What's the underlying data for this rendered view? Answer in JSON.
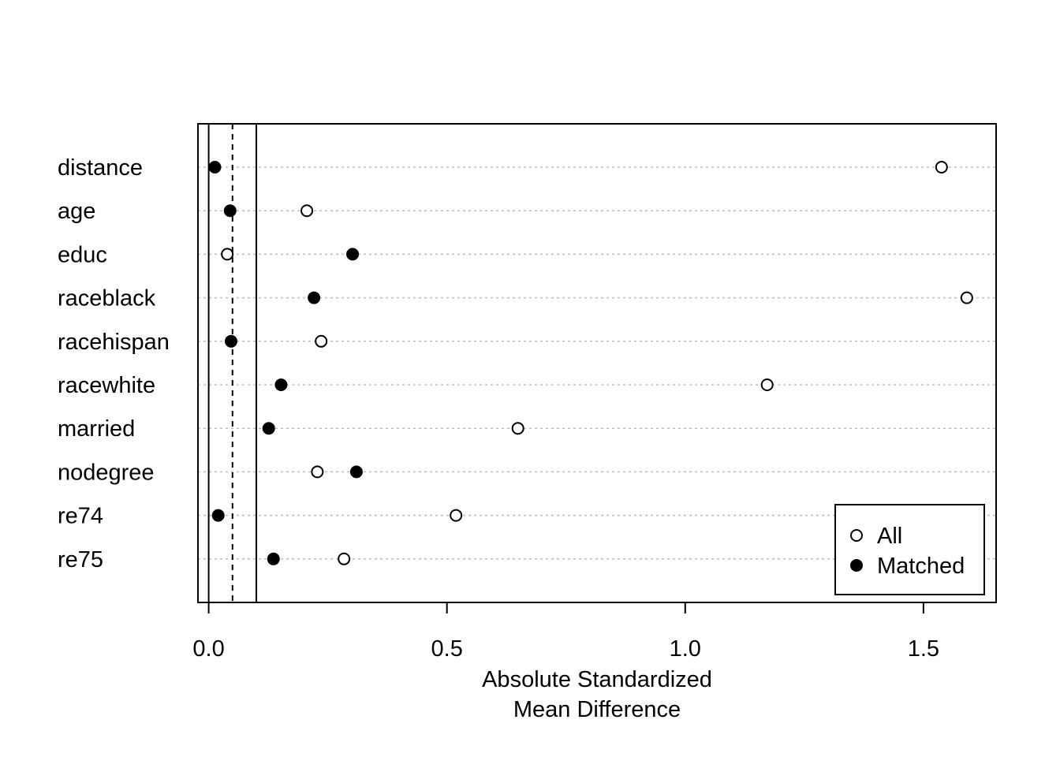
{
  "chart_data": {
    "type": "scatter",
    "title": "",
    "xlabel": [
      "Absolute Standardized",
      "Mean Difference"
    ],
    "ylabel": "",
    "xlim": [
      -0.0225,
      1.6525
    ],
    "xticks": [
      "0.0",
      "0.5",
      "1.0",
      "1.5"
    ],
    "xtick_values": [
      0,
      0.5,
      1.0,
      1.5
    ],
    "categories": [
      "distance",
      "age",
      "educ",
      "raceblack",
      "racehispan",
      "racewhite",
      "married",
      "nodegree",
      "re74",
      "re75"
    ],
    "series": [
      {
        "name": "All",
        "marker": "open-circle",
        "values": [
          1.538,
          0.206,
          0.039,
          1.591,
          0.236,
          1.172,
          0.649,
          0.228,
          0.519,
          0.284
        ]
      },
      {
        "name": "Matched",
        "marker": "filled-circle",
        "values": [
          0.013,
          0.045,
          0.302,
          0.221,
          0.047,
          0.152,
          0.126,
          0.31,
          0.02,
          0.136
        ]
      }
    ],
    "reference_lines": [
      {
        "x": 0,
        "style": "solid"
      },
      {
        "x": 0.05,
        "style": "dashed"
      },
      {
        "x": 0.1,
        "style": "solid"
      }
    ],
    "grid": "horizontal-dotted",
    "legend_position": "bottom-right"
  }
}
